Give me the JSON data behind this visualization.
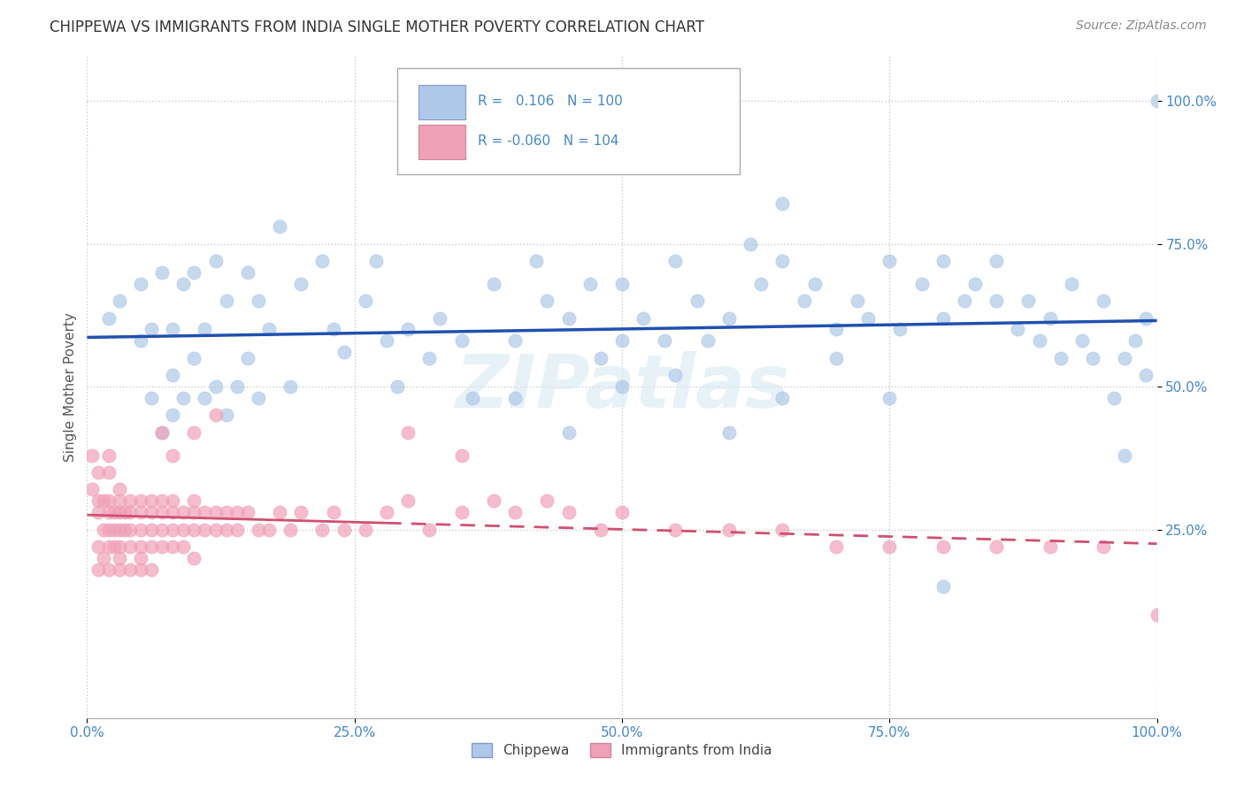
{
  "title": "CHIPPEWA VS IMMIGRANTS FROM INDIA SINGLE MOTHER POVERTY CORRELATION CHART",
  "source": "Source: ZipAtlas.com",
  "ylabel": "Single Mother Poverty",
  "xlim": [
    0,
    1
  ],
  "ylim": [
    -0.08,
    1.08
  ],
  "xticks": [
    0,
    0.25,
    0.5,
    0.75,
    1.0
  ],
  "xtick_labels": [
    "0.0%",
    "25.0%",
    "50.0%",
    "75.0%",
    "100.0%"
  ],
  "yticks": [
    0.25,
    0.5,
    0.75,
    1.0
  ],
  "ytick_labels": [
    "25.0%",
    "50.0%",
    "75.0%",
    "100.0%"
  ],
  "r_chippewa": 0.106,
  "n_chippewa": 100,
  "r_india": -0.06,
  "n_india": 104,
  "color_chippewa": "#adc8e8",
  "color_india": "#f0a0b8",
  "line_color_chippewa": "#2050b0",
  "line_color_india": "#d05070",
  "background_color": "#ffffff",
  "grid_color": "#cccccc",
  "title_color": "#333333",
  "source_color": "#888888",
  "tick_color": "#4488cc",
  "ylabel_color": "#555555",
  "chippewa_x": [
    0.02,
    0.03,
    0.05,
    0.05,
    0.06,
    0.06,
    0.07,
    0.07,
    0.08,
    0.08,
    0.08,
    0.09,
    0.09,
    0.1,
    0.1,
    0.11,
    0.11,
    0.12,
    0.12,
    0.13,
    0.13,
    0.14,
    0.15,
    0.15,
    0.16,
    0.16,
    0.17,
    0.18,
    0.19,
    0.2,
    0.22,
    0.23,
    0.24,
    0.26,
    0.27,
    0.28,
    0.29,
    0.3,
    0.32,
    0.33,
    0.35,
    0.36,
    0.38,
    0.4,
    0.42,
    0.43,
    0.45,
    0.47,
    0.48,
    0.5,
    0.5,
    0.52,
    0.54,
    0.55,
    0.57,
    0.58,
    0.6,
    0.62,
    0.63,
    0.65,
    0.65,
    0.67,
    0.68,
    0.7,
    0.72,
    0.73,
    0.75,
    0.76,
    0.78,
    0.8,
    0.8,
    0.82,
    0.83,
    0.85,
    0.85,
    0.87,
    0.88,
    0.89,
    0.9,
    0.91,
    0.92,
    0.93,
    0.94,
    0.95,
    0.96,
    0.97,
    0.97,
    0.98,
    0.99,
    0.99,
    0.4,
    0.45,
    0.5,
    0.55,
    0.6,
    0.65,
    0.7,
    0.75,
    0.8,
    1.0
  ],
  "chippewa_y": [
    0.62,
    0.65,
    0.58,
    0.68,
    0.48,
    0.6,
    0.42,
    0.7,
    0.52,
    0.45,
    0.6,
    0.68,
    0.48,
    0.7,
    0.55,
    0.48,
    0.6,
    0.72,
    0.5,
    0.65,
    0.45,
    0.5,
    0.55,
    0.7,
    0.48,
    0.65,
    0.6,
    0.78,
    0.5,
    0.68,
    0.72,
    0.6,
    0.56,
    0.65,
    0.72,
    0.58,
    0.5,
    0.6,
    0.55,
    0.62,
    0.58,
    0.48,
    0.68,
    0.58,
    0.72,
    0.65,
    0.62,
    0.68,
    0.55,
    0.58,
    0.68,
    0.62,
    0.58,
    0.72,
    0.65,
    0.58,
    0.62,
    0.75,
    0.68,
    0.82,
    0.72,
    0.65,
    0.68,
    0.6,
    0.65,
    0.62,
    0.72,
    0.6,
    0.68,
    0.62,
    0.72,
    0.65,
    0.68,
    0.72,
    0.65,
    0.6,
    0.65,
    0.58,
    0.62,
    0.55,
    0.68,
    0.58,
    0.55,
    0.65,
    0.48,
    0.55,
    0.38,
    0.58,
    0.52,
    0.62,
    0.48,
    0.42,
    0.5,
    0.52,
    0.42,
    0.48,
    0.55,
    0.48,
    0.15,
    1.0
  ],
  "india_x": [
    0.005,
    0.005,
    0.01,
    0.01,
    0.01,
    0.01,
    0.01,
    0.015,
    0.015,
    0.015,
    0.02,
    0.02,
    0.02,
    0.02,
    0.02,
    0.02,
    0.02,
    0.025,
    0.025,
    0.025,
    0.03,
    0.03,
    0.03,
    0.03,
    0.03,
    0.03,
    0.03,
    0.035,
    0.035,
    0.04,
    0.04,
    0.04,
    0.04,
    0.04,
    0.05,
    0.05,
    0.05,
    0.05,
    0.05,
    0.05,
    0.06,
    0.06,
    0.06,
    0.06,
    0.06,
    0.07,
    0.07,
    0.07,
    0.07,
    0.08,
    0.08,
    0.08,
    0.08,
    0.09,
    0.09,
    0.09,
    0.1,
    0.1,
    0.1,
    0.1,
    0.11,
    0.11,
    0.12,
    0.12,
    0.13,
    0.13,
    0.14,
    0.14,
    0.15,
    0.16,
    0.17,
    0.18,
    0.19,
    0.2,
    0.22,
    0.23,
    0.24,
    0.26,
    0.28,
    0.3,
    0.32,
    0.35,
    0.38,
    0.4,
    0.43,
    0.45,
    0.48,
    0.5,
    0.55,
    0.6,
    0.65,
    0.7,
    0.75,
    0.8,
    0.85,
    0.9,
    0.95,
    1.0,
    0.1,
    0.12,
    0.07,
    0.08,
    0.3,
    0.35
  ],
  "india_y": [
    0.38,
    0.32,
    0.35,
    0.3,
    0.28,
    0.22,
    0.18,
    0.3,
    0.25,
    0.2,
    0.38,
    0.35,
    0.3,
    0.28,
    0.25,
    0.22,
    0.18,
    0.28,
    0.25,
    0.22,
    0.32,
    0.3,
    0.28,
    0.25,
    0.22,
    0.2,
    0.18,
    0.28,
    0.25,
    0.3,
    0.28,
    0.25,
    0.22,
    0.18,
    0.3,
    0.28,
    0.25,
    0.22,
    0.2,
    0.18,
    0.3,
    0.28,
    0.25,
    0.22,
    0.18,
    0.3,
    0.28,
    0.25,
    0.22,
    0.3,
    0.28,
    0.25,
    0.22,
    0.28,
    0.25,
    0.22,
    0.3,
    0.28,
    0.25,
    0.2,
    0.28,
    0.25,
    0.28,
    0.25,
    0.28,
    0.25,
    0.28,
    0.25,
    0.28,
    0.25,
    0.25,
    0.28,
    0.25,
    0.28,
    0.25,
    0.28,
    0.25,
    0.25,
    0.28,
    0.3,
    0.25,
    0.28,
    0.3,
    0.28,
    0.3,
    0.28,
    0.25,
    0.28,
    0.25,
    0.25,
    0.25,
    0.22,
    0.22,
    0.22,
    0.22,
    0.22,
    0.22,
    0.1,
    0.42,
    0.45,
    0.42,
    0.38,
    0.42,
    0.38
  ]
}
